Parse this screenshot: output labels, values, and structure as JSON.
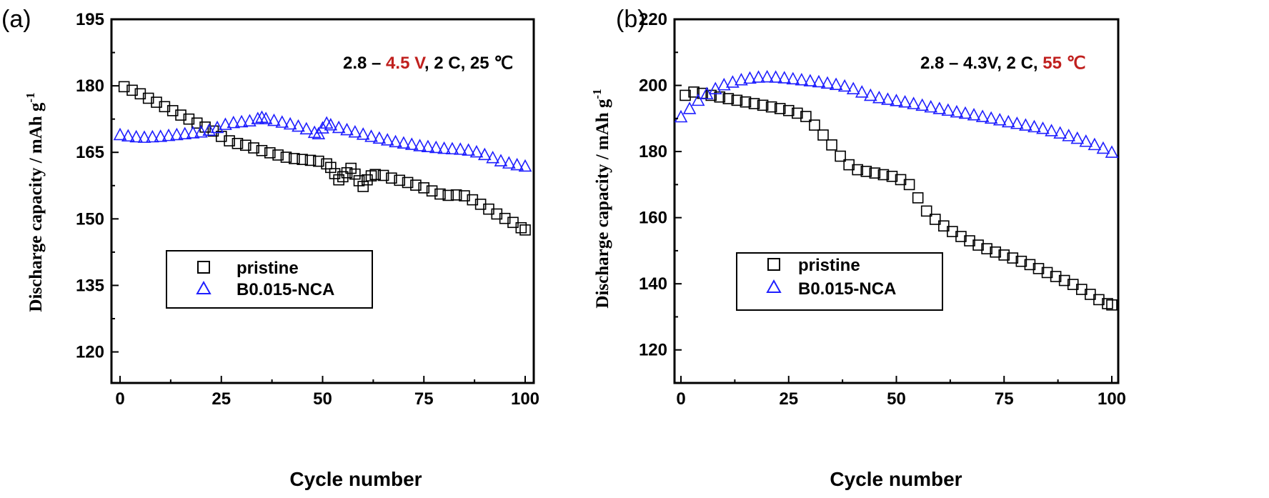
{
  "colors": {
    "pristine": "#000000",
    "nca": "#1f1fff",
    "highlight": "#c0201e",
    "text": "#000000"
  },
  "chart_data": [
    {
      "type": "scatter",
      "panel_label": "(a)",
      "xlabel": "Cycle number",
      "ylabel": "Discharge capacity / mAh g",
      "ylabel_sup": "-1",
      "xlim": [
        0,
        100
      ],
      "ylim": [
        113,
        195
      ],
      "xticks": [
        "0",
        "25",
        "50",
        "75",
        "100"
      ],
      "xtick_values": [
        0,
        25,
        50,
        75,
        100
      ],
      "yticks": [
        "120",
        "135",
        "150",
        "165",
        "180",
        "195"
      ],
      "ytick_values": [
        120,
        135,
        150,
        165,
        180,
        195
      ],
      "condition": {
        "part1": "2.8 – ",
        "part2": "4.5 V",
        "part3": ", 2 C, 25 ℃",
        "highlight_part": "part2"
      },
      "legend": [
        "pristine",
        "B0.015-NCA"
      ],
      "series": [
        {
          "name": "pristine",
          "marker": "square",
          "x": [
            1,
            3,
            5,
            7,
            9,
            11,
            13,
            15,
            17,
            19,
            21,
            23,
            25,
            27,
            29,
            31,
            33,
            35,
            37,
            39,
            41,
            43,
            45,
            47,
            49,
            51,
            52,
            53,
            54,
            55,
            56,
            57,
            58,
            59,
            60,
            61,
            62,
            63,
            65,
            67,
            69,
            71,
            73,
            75,
            77,
            79,
            81,
            83,
            85,
            87,
            89,
            91,
            93,
            95,
            97,
            99,
            100
          ],
          "y": [
            179.8,
            179,
            178.2,
            177.2,
            176.3,
            175.3,
            174.4,
            173.4,
            172.5,
            171.6,
            170.7,
            169.8,
            168.6,
            167.6,
            167,
            166.6,
            166,
            165.4,
            164.9,
            164.4,
            163.9,
            163.6,
            163.4,
            163.2,
            163,
            162.4,
            161.6,
            160.2,
            158.8,
            159.5,
            160.4,
            161.4,
            160.1,
            158.6,
            157.3,
            158.8,
            159.7,
            160,
            159.8,
            159.2,
            158.7,
            158.2,
            157.6,
            157,
            156.3,
            155.6,
            155.3,
            155.4,
            155.2,
            154.3,
            153.3,
            152.2,
            151.1,
            150.1,
            149.2,
            148,
            147.5
          ]
        },
        {
          "name": "B0.015-NCA",
          "marker": "triangle",
          "x": [
            0,
            2,
            4,
            6,
            8,
            10,
            12,
            14,
            16,
            18,
            20,
            22,
            24,
            26,
            28,
            30,
            32,
            34,
            35,
            36,
            38,
            40,
            42,
            44,
            46,
            48,
            49,
            50,
            51,
            52,
            54,
            56,
            58,
            60,
            62,
            64,
            66,
            68,
            70,
            72,
            74,
            76,
            78,
            80,
            82,
            84,
            86,
            88,
            90,
            92,
            94,
            96,
            98,
            100
          ],
          "y": [
            169,
            168.7,
            168.5,
            168.4,
            168.5,
            168.6,
            168.8,
            169,
            169.2,
            169.4,
            169.6,
            170,
            170.6,
            171.3,
            171.7,
            171.9,
            172.1,
            172.6,
            172.9,
            172.6,
            172.2,
            171.8,
            171.4,
            170.9,
            170.3,
            169.5,
            169.2,
            170.5,
            171.6,
            171.2,
            170.6,
            170.1,
            169.6,
            169.1,
            168.6,
            168.2,
            167.8,
            167.4,
            167.1,
            166.8,
            166.5,
            166.3,
            166.1,
            165.9,
            165.8,
            165.7,
            165.5,
            165.1,
            164.5,
            163.8,
            163.1,
            162.6,
            162.2,
            161.9
          ]
        }
      ]
    },
    {
      "type": "scatter",
      "panel_label": "(b)",
      "xlabel": "Cycle number",
      "ylabel": "Discharge capacity / mAh g",
      "ylabel_sup": "-1",
      "xlim": [
        0,
        100
      ],
      "ylim": [
        110,
        220
      ],
      "xticks": [
        "0",
        "25",
        "50",
        "75",
        "100"
      ],
      "xtick_values": [
        0,
        25,
        50,
        75,
        100
      ],
      "yticks": [
        "120",
        "140",
        "160",
        "180",
        "200",
        "220"
      ],
      "ytick_values": [
        120,
        140,
        160,
        180,
        200,
        220
      ],
      "condition": {
        "part1": "2.8 – 4.3V, 2 C, ",
        "part2": "55 ℃",
        "part3": "",
        "highlight_part": "part2"
      },
      "legend": [
        "pristine",
        "B0.015-NCA"
      ],
      "series": [
        {
          "name": "pristine",
          "marker": "square",
          "x": [
            1,
            3,
            5,
            7,
            9,
            11,
            13,
            15,
            17,
            19,
            21,
            23,
            25,
            27,
            29,
            31,
            33,
            35,
            37,
            39,
            41,
            43,
            45,
            47,
            49,
            51,
            53,
            55,
            57,
            59,
            61,
            63,
            65,
            67,
            69,
            71,
            73,
            75,
            77,
            79,
            81,
            83,
            85,
            87,
            89,
            91,
            93,
            95,
            97,
            99,
            100
          ],
          "y": [
            197,
            198,
            197.6,
            197,
            196.5,
            196,
            195.5,
            195,
            194.5,
            194,
            193.5,
            193,
            192.4,
            191.6,
            190.6,
            188,
            185,
            182,
            178.6,
            176,
            174.5,
            174,
            173.5,
            173,
            172.5,
            171.5,
            170,
            166,
            162,
            159.5,
            157.5,
            155.8,
            154.3,
            153,
            151.7,
            150.6,
            149.6,
            148.7,
            147.8,
            146.8,
            145.8,
            144.6,
            143.4,
            142.2,
            141,
            139.8,
            138.3,
            136.8,
            135.2,
            134,
            133.6
          ]
        },
        {
          "name": "B0.015-NCA",
          "marker": "triangle",
          "x": [
            0,
            2,
            4,
            6,
            8,
            10,
            12,
            14,
            16,
            18,
            20,
            22,
            24,
            26,
            28,
            30,
            32,
            34,
            36,
            38,
            40,
            42,
            44,
            46,
            48,
            50,
            52,
            54,
            56,
            58,
            60,
            62,
            64,
            66,
            68,
            70,
            72,
            74,
            76,
            78,
            80,
            82,
            84,
            86,
            88,
            90,
            92,
            94,
            96,
            98,
            100
          ],
          "y": [
            190.5,
            193,
            195.5,
            197.5,
            199,
            200.2,
            201,
            201.7,
            202.2,
            202.5,
            202.6,
            202.5,
            202.3,
            202,
            201.7,
            201.4,
            201.1,
            200.7,
            200.3,
            199.8,
            199,
            198,
            197,
            196.3,
            195.8,
            195.4,
            195,
            194.5,
            194,
            193.5,
            193,
            192.5,
            192,
            191.6,
            191.1,
            190.6,
            190.1,
            189.6,
            189,
            188.5,
            188,
            187.5,
            187,
            186.3,
            185.6,
            184.8,
            184,
            183.1,
            182.1,
            181,
            179.8
          ]
        }
      ]
    }
  ]
}
